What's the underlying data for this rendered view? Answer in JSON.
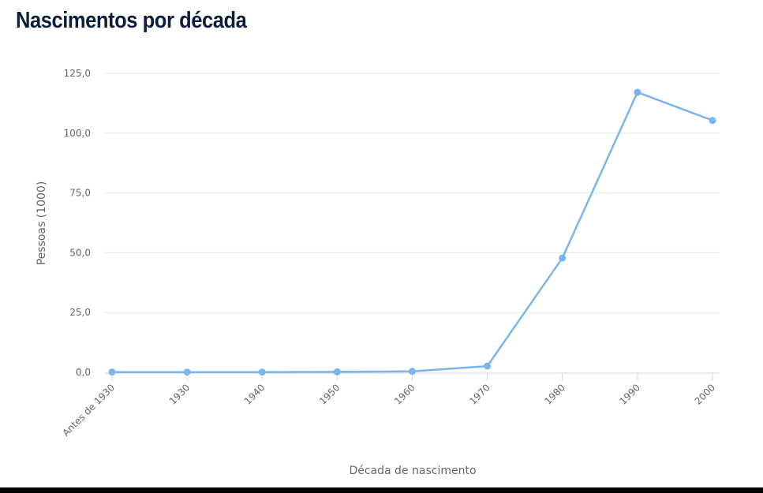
{
  "chart_data": {
    "type": "line",
    "title": "Nascimentos por década",
    "xlabel": "Década de nascimento",
    "ylabel": "Pessoas (1000)",
    "categories": [
      "Antes de 1930",
      "1930",
      "1940",
      "1950",
      "1960",
      "1970",
      "1980",
      "1990",
      "2000"
    ],
    "values": [
      0.1,
      0.1,
      0.1,
      0.2,
      0.4,
      2.6,
      47.8,
      117.1,
      105.3
    ],
    "ylim": [
      0,
      125
    ],
    "yticks": [
      0,
      25,
      50,
      75,
      100,
      125
    ],
    "ytick_labels": [
      "0,0",
      "25,0",
      "50,0",
      "75,0",
      "100,0",
      "125,0"
    ],
    "grid": true,
    "legend": "none",
    "color": "#7cb5ec"
  }
}
